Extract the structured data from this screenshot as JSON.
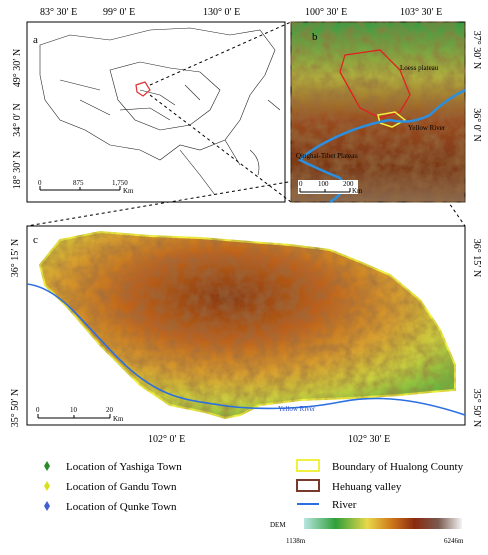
{
  "panel_a": {
    "label": "a",
    "lon_labels": [
      "83° 30′ E",
      "99° 0′ E",
      "130° 0′ E"
    ],
    "lat_labels": [
      "49° 30′ N",
      "34° 0′ N",
      "18° 30′ N"
    ],
    "scale": [
      "0",
      "875",
      "1,750",
      "Km"
    ]
  },
  "panel_b": {
    "label": "b",
    "lon_labels": [
      "100° 30′ E",
      "103° 30′ E"
    ],
    "lat_labels": [
      "37° 30′ N",
      "36° 0′ N"
    ],
    "annotations": [
      "Loess plateau",
      "Yellow River",
      "Qinghai-Tibet Plateau"
    ],
    "scale": [
      "0",
      "100",
      "200",
      "Km"
    ]
  },
  "panel_c": {
    "label": "c",
    "lat_labels_left": [
      "36° 15′ N",
      "35° 50′ N"
    ],
    "lat_labels_right": [
      "36° 15′ N",
      "35° 50′ N"
    ],
    "lon_labels": [
      "102° 0′ E",
      "102° 30′ E"
    ],
    "annotation": "Yellow River",
    "scale": [
      "0",
      "10",
      "20",
      "Km"
    ]
  },
  "legend": {
    "points": [
      "Location of Yashiga Town",
      "Location of Gandu Town",
      "Location of Qunke Town"
    ],
    "areas": [
      "Boundary of Hualong County",
      "Hehuang valley",
      "River"
    ],
    "dem_title": "DEM",
    "dem_min": "1138m",
    "dem_max": "6246m"
  }
}
